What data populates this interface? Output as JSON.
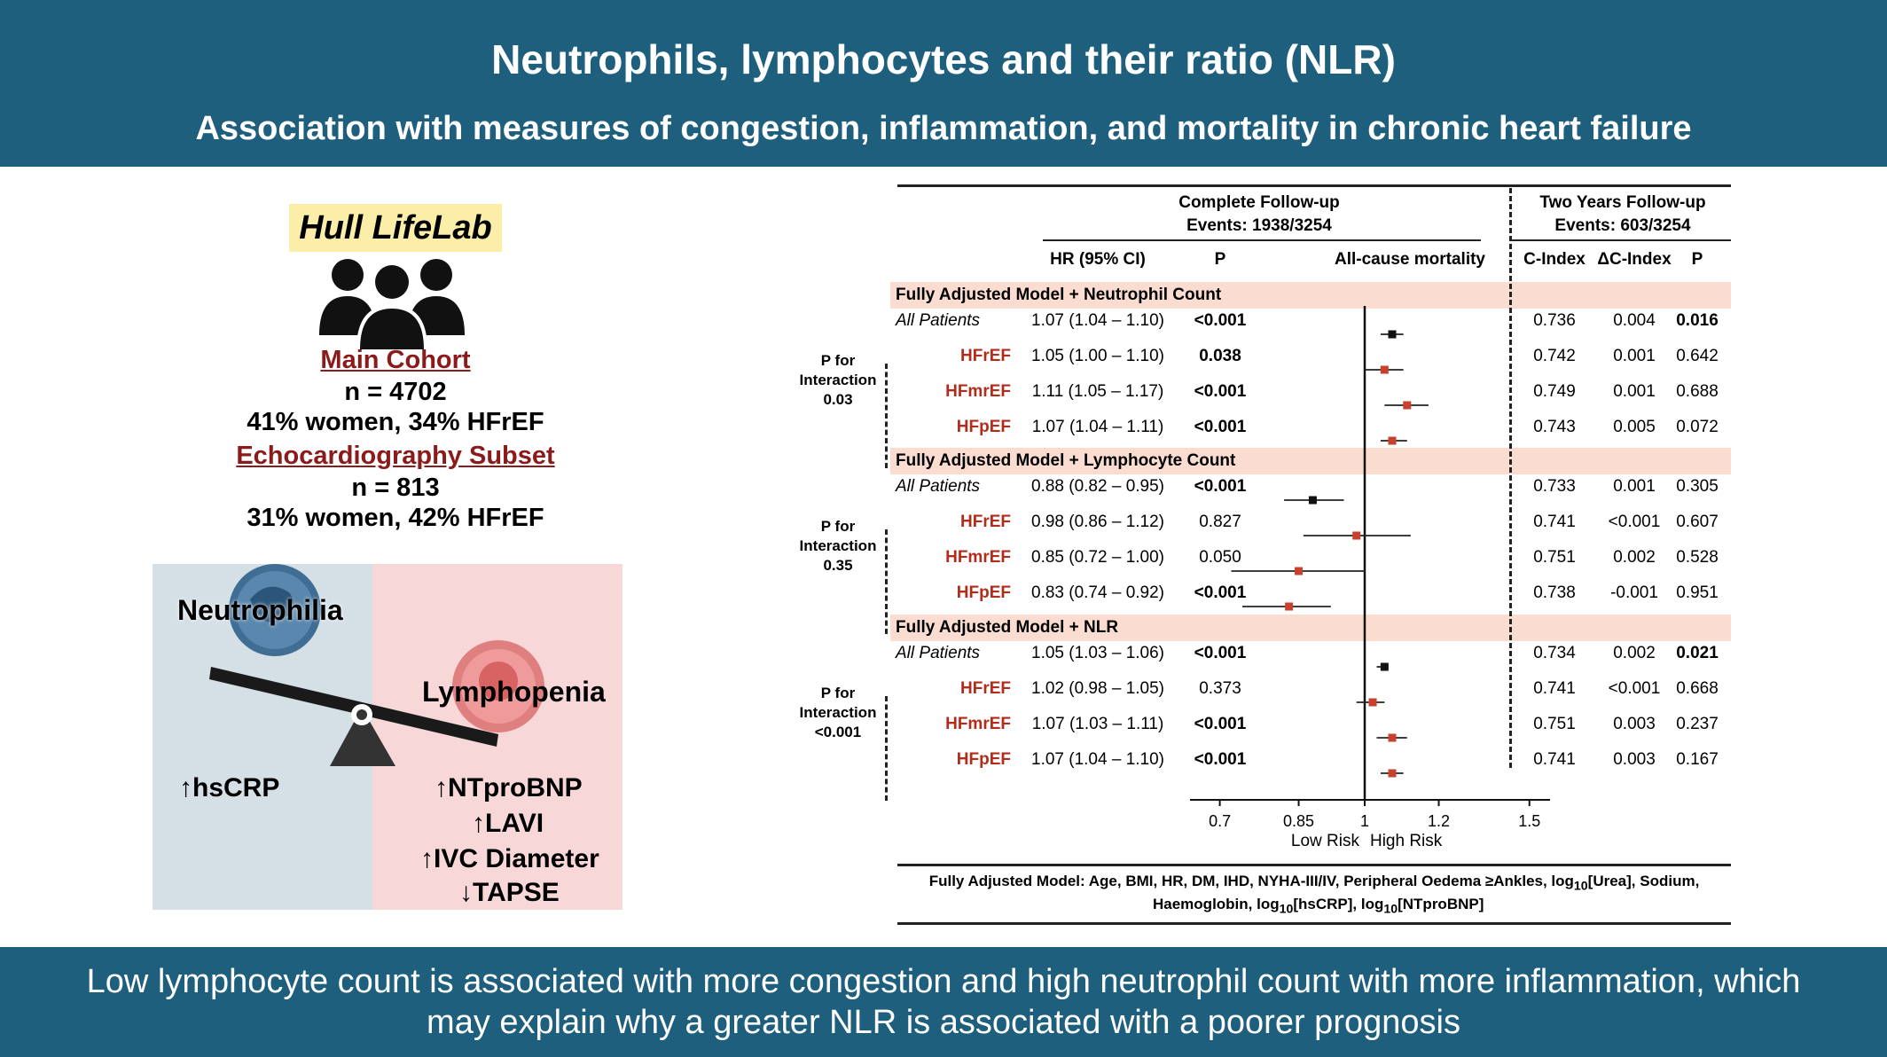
{
  "header": {
    "title": "Neutrophils, lymphocytes and their ratio (NLR)",
    "subtitle": "Association with measures of congestion, inflammation, and mortality in chronic heart failure"
  },
  "footer": {
    "line1": "Low lymphocyte count is associated with more congestion and high neutrophil count with more inflammation, which",
    "line2": "may explain why a greater NLR is associated with a poorer prognosis"
  },
  "cohort": {
    "study": "Hull LifeLab",
    "main_label": "Main Cohort",
    "main_n": "n = 4702",
    "main_desc": "41% women, 34% HFrEF",
    "echo_label": "Echocardiography Subset",
    "echo_n": "n = 813",
    "echo_desc": "31% women, 42% HFrEF"
  },
  "illustration": {
    "left_label": "Neutrophilia",
    "right_label": "Lymphopenia",
    "left_marker": "hsCRP",
    "right_markers": [
      "NTproBNP",
      "LAVI",
      "IVC Diameter",
      "TAPSE"
    ],
    "up_arrow": "↑",
    "down_arrow": "↓"
  },
  "colors": {
    "banner": "#1e5f7e",
    "highlight": "#fbeea9",
    "band": "#fbdcd0",
    "subgroup": "#b32b1a",
    "marker_red": "#c8412c"
  },
  "chart_data": {
    "type": "forest",
    "complete_header": "Complete Follow-up",
    "complete_events": "Events: 1938/3254",
    "two_year_header": "Two Years Follow-up",
    "two_year_events": "Events: 603/3254",
    "col_hr": "HR (95% CI)",
    "col_p": "P",
    "col_plot": "All-cause mortality",
    "col_cindex": "C-Index",
    "col_dc": "ΔC-Index",
    "col_p2": "P",
    "xaxis": {
      "ticks": [
        0.7,
        0.85,
        1,
        1.2,
        1.5
      ],
      "tick_labels": [
        "0.7",
        "0.85",
        "1",
        "1.2",
        "1.5"
      ],
      "log_scale": true,
      "reference": 1,
      "low_label": "Low Risk",
      "high_label": "High Risk"
    },
    "interaction_label": [
      "P for",
      "Interaction"
    ],
    "groups": [
      {
        "title": "Fully Adjusted Model + Neutrophil Count",
        "interaction_p": "0.03",
        "rows": [
          {
            "label": "All Patients",
            "hr": 1.07,
            "lo": 1.04,
            "hi": 1.1,
            "hr_text": "1.07 (1.04 – 1.10)",
            "p": "<0.001",
            "p_bold": true,
            "cidx": "0.736",
            "dc": "0.004",
            "p2": "0.016",
            "p2_bold": true
          },
          {
            "label": "HFrEF",
            "hr": 1.05,
            "lo": 1.0,
            "hi": 1.1,
            "hr_text": "1.05 (1.00 – 1.10)",
            "p": "0.038",
            "p_bold": true,
            "cidx": "0.742",
            "dc": "0.001",
            "p2": "0.642",
            "p2_bold": false
          },
          {
            "label": "HFmrEF",
            "hr": 1.11,
            "lo": 1.05,
            "hi": 1.17,
            "hr_text": "1.11 (1.05 – 1.17)",
            "p": "<0.001",
            "p_bold": true,
            "cidx": "0.749",
            "dc": "0.001",
            "p2": "0.688",
            "p2_bold": false
          },
          {
            "label": "HFpEF",
            "hr": 1.07,
            "lo": 1.04,
            "hi": 1.11,
            "hr_text": "1.07 (1.04 – 1.11)",
            "p": "<0.001",
            "p_bold": true,
            "cidx": "0.743",
            "dc": "0.005",
            "p2": "0.072",
            "p2_bold": false
          }
        ]
      },
      {
        "title": "Fully Adjusted Model + Lymphocyte Count",
        "interaction_p": "0.35",
        "rows": [
          {
            "label": "All Patients",
            "hr": 0.88,
            "lo": 0.82,
            "hi": 0.95,
            "hr_text": "0.88 (0.82 – 0.95)",
            "p": "<0.001",
            "p_bold": true,
            "cidx": "0.733",
            "dc": "0.001",
            "p2": "0.305",
            "p2_bold": false
          },
          {
            "label": "HFrEF",
            "hr": 0.98,
            "lo": 0.86,
            "hi": 1.12,
            "hr_text": "0.98 (0.86 – 1.12)",
            "p": "0.827",
            "p_bold": false,
            "cidx": "0.741",
            "dc": "<0.001",
            "p2": "0.607",
            "p2_bold": false
          },
          {
            "label": "HFmrEF",
            "hr": 0.85,
            "lo": 0.72,
            "hi": 1.0,
            "hr_text": "0.85 (0.72 – 1.00)",
            "p": "0.050",
            "p_bold": false,
            "cidx": "0.751",
            "dc": "0.002",
            "p2": "0.528",
            "p2_bold": false
          },
          {
            "label": "HFpEF",
            "hr": 0.83,
            "lo": 0.74,
            "hi": 0.92,
            "hr_text": "0.83 (0.74 – 0.92)",
            "p": "<0.001",
            "p_bold": true,
            "cidx": "0.738",
            "dc": "-0.001",
            "p2": "0.951",
            "p2_bold": false
          }
        ]
      },
      {
        "title": "Fully Adjusted Model + NLR",
        "interaction_p": "<0.001",
        "rows": [
          {
            "label": "All Patients",
            "hr": 1.05,
            "lo": 1.03,
            "hi": 1.06,
            "hr_text": "1.05 (1.03 – 1.06)",
            "p": "<0.001",
            "p_bold": true,
            "cidx": "0.734",
            "dc": "0.002",
            "p2": "0.021",
            "p2_bold": true
          },
          {
            "label": "HFrEF",
            "hr": 1.02,
            "lo": 0.98,
            "hi": 1.05,
            "hr_text": "1.02 (0.98 – 1.05)",
            "p": "0.373",
            "p_bold": false,
            "cidx": "0.741",
            "dc": "<0.001",
            "p2": "0.668",
            "p2_bold": false
          },
          {
            "label": "HFmrEF",
            "hr": 1.07,
            "lo": 1.03,
            "hi": 1.11,
            "hr_text": "1.07 (1.03 – 1.11)",
            "p": "<0.001",
            "p_bold": true,
            "cidx": "0.751",
            "dc": "0.003",
            "p2": "0.237",
            "p2_bold": false
          },
          {
            "label": "HFpEF",
            "hr": 1.07,
            "lo": 1.04,
            "hi": 1.1,
            "hr_text": "1.07 (1.04 – 1.10)",
            "p": "<0.001",
            "p_bold": true,
            "cidx": "0.741",
            "dc": "0.003",
            "p2": "0.167",
            "p2_bold": false
          }
        ]
      }
    ],
    "footnote_line1": "Fully Adjusted Model: Age, BMI, HR, DM, IHD, NYHA-III/IV, Peripheral Oedema ≥Ankles, log",
    "footnote_sub": "10",
    "footnote_urea": "[Urea], Sodium,",
    "footnote_line2a": "Haemoglobin, log",
    "footnote_line2b": "[hsCRP], log",
    "footnote_line2c": "[NTproBNP]"
  }
}
